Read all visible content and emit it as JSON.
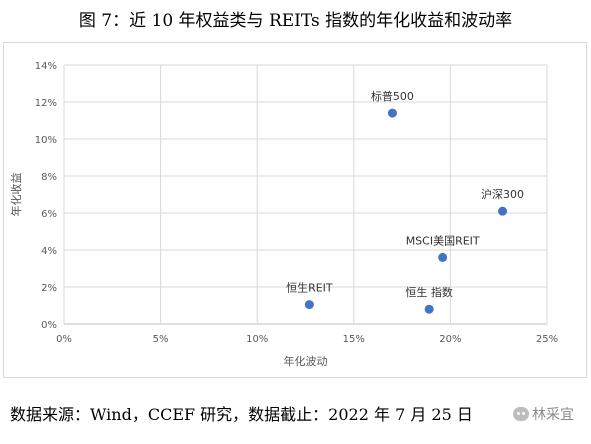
{
  "figure": {
    "title": "图 7：近 10 年权益类与 REITs 指数的年化收益和波动率",
    "source": "数据来源：Wind，CCEF 研究，数据截止：2022 年 7 月 25 日",
    "watermark": "林采宜"
  },
  "chart_data": {
    "type": "scatter",
    "title": "",
    "xlabel": "年化波动",
    "ylabel": "年化收益",
    "xlim": [
      0,
      25
    ],
    "ylim": [
      0,
      14
    ],
    "xticks": [
      "0%",
      "5%",
      "10%",
      "15%",
      "20%",
      "25%"
    ],
    "yticks": [
      "0%",
      "2%",
      "4%",
      "6%",
      "8%",
      "10%",
      "12%",
      "14%"
    ],
    "grid": true,
    "legend": "none",
    "marker_color": "#4472c4",
    "points": [
      {
        "label": "标普500",
        "x": 17.0,
        "y": 11.4
      },
      {
        "label": "沪深300",
        "x": 22.7,
        "y": 6.1
      },
      {
        "label": "MSCI美国REIT",
        "x": 19.6,
        "y": 3.6
      },
      {
        "label": "恒生REIT",
        "x": 12.7,
        "y": 1.05
      },
      {
        "label": "恒生 指数",
        "x": 18.9,
        "y": 0.8
      }
    ]
  }
}
